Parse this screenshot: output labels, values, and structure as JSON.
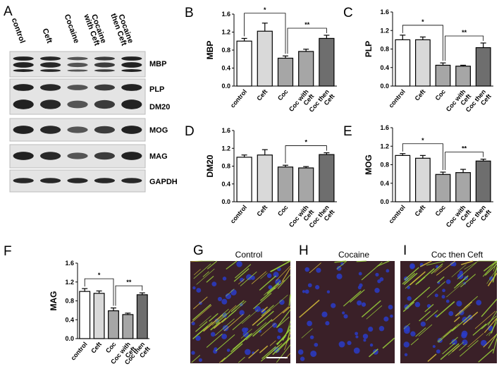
{
  "chart_data": [
    {
      "type": "bar",
      "panel": "B",
      "ylabel": "MBP",
      "categories": [
        "control",
        "Ceft",
        "Coc",
        "Coc with Ceft",
        "Coc then Ceft"
      ],
      "values": [
        1.0,
        1.22,
        0.62,
        0.77,
        1.06
      ],
      "errors": [
        0.06,
        0.18,
        0.05,
        0.05,
        0.07
      ],
      "colors": [
        "#ffffff",
        "#d9d9d9",
        "#a6a6a6",
        "#a6a6a6",
        "#6e6e6e"
      ],
      "ylim": [
        0,
        1.6
      ],
      "yticks": [
        {
          "value": 0,
          "label": "0.0"
        },
        0.4,
        0.8,
        1.2,
        1.6
      ],
      "annotations": [
        "*",
        "**"
      ]
    },
    {
      "type": "bar",
      "panel": "C",
      "ylabel": "PLP",
      "categories": [
        "control",
        "Ceft",
        "Coc",
        "Coc with Ceft",
        "Coc then Ceft"
      ],
      "values": [
        1.0,
        1.0,
        0.45,
        0.43,
        0.83
      ],
      "errors": [
        0.1,
        0.06,
        0.05,
        0.02,
        0.1
      ],
      "colors": [
        "#ffffff",
        "#d9d9d9",
        "#a6a6a6",
        "#a6a6a6",
        "#6e6e6e"
      ],
      "ylim": [
        0,
        1.6
      ],
      "yticks": [
        {
          "value": 0,
          "label": "0.0"
        },
        0.4,
        0.8,
        1.2,
        1.6
      ],
      "annotations": [
        "*",
        "**"
      ]
    },
    {
      "type": "bar",
      "panel": "D",
      "ylabel": "DM20",
      "categories": [
        "control",
        "Ceft",
        "Coc",
        "Coc with Ceft",
        "Coc then Ceft"
      ],
      "values": [
        1.0,
        1.05,
        0.78,
        0.76,
        1.06
      ],
      "errors": [
        0.05,
        0.12,
        0.04,
        0.03,
        0.04
      ],
      "colors": [
        "#ffffff",
        "#d9d9d9",
        "#a6a6a6",
        "#a6a6a6",
        "#6e6e6e"
      ],
      "ylim": [
        0,
        1.6
      ],
      "yticks": [
        {
          "value": 0,
          "label": "0.0"
        },
        0.4,
        0.8,
        1.2,
        1.6
      ],
      "annotations": [
        "*"
      ]
    },
    {
      "type": "bar",
      "panel": "E",
      "ylabel": "MOG",
      "categories": [
        "control",
        "Ceft",
        "Coc",
        "Coc with Ceft",
        "Coc then Ceft"
      ],
      "values": [
        1.0,
        0.94,
        0.59,
        0.63,
        0.88
      ],
      "errors": [
        0.04,
        0.06,
        0.05,
        0.07,
        0.04
      ],
      "colors": [
        "#ffffff",
        "#d9d9d9",
        "#a6a6a6",
        "#a6a6a6",
        "#6e6e6e"
      ],
      "ylim": [
        0,
        1.6
      ],
      "yticks": [
        {
          "value": 0,
          "label": "0.0"
        },
        0.4,
        0.8,
        1.2,
        1.6
      ],
      "annotations": [
        "*",
        "**"
      ]
    },
    {
      "type": "bar",
      "panel": "F",
      "ylabel": "MAG",
      "categories": [
        "control",
        "Ceft",
        "Coc",
        "Coc with Ceft",
        "Coc then Ceft"
      ],
      "values": [
        1.0,
        0.96,
        0.59,
        0.51,
        0.93
      ],
      "errors": [
        0.06,
        0.05,
        0.06,
        0.03,
        0.04
      ],
      "colors": [
        "#ffffff",
        "#d9d9d9",
        "#a6a6a6",
        "#a6a6a6",
        "#6e6e6e"
      ],
      "ylim": [
        0,
        1.6
      ],
      "yticks": [
        {
          "value": 0,
          "label": "0.0"
        },
        0.4,
        0.8,
        1.2,
        1.6
      ],
      "annotations": [
        "*",
        "**"
      ]
    }
  ],
  "western_blot": {
    "panel": "A",
    "lanes": [
      "control",
      "Ceft",
      "Cocaine",
      "Cocaine with Ceft",
      "Cocaine then Ceft"
    ],
    "bands": [
      "MBP",
      "PLP",
      "DM20",
      "MOG",
      "MAG",
      "GAPDH"
    ]
  },
  "images": [
    {
      "panel": "G",
      "title": "Control"
    },
    {
      "panel": "H",
      "title": "Cocaine"
    },
    {
      "panel": "I",
      "title": "Coc then Ceft"
    }
  ]
}
